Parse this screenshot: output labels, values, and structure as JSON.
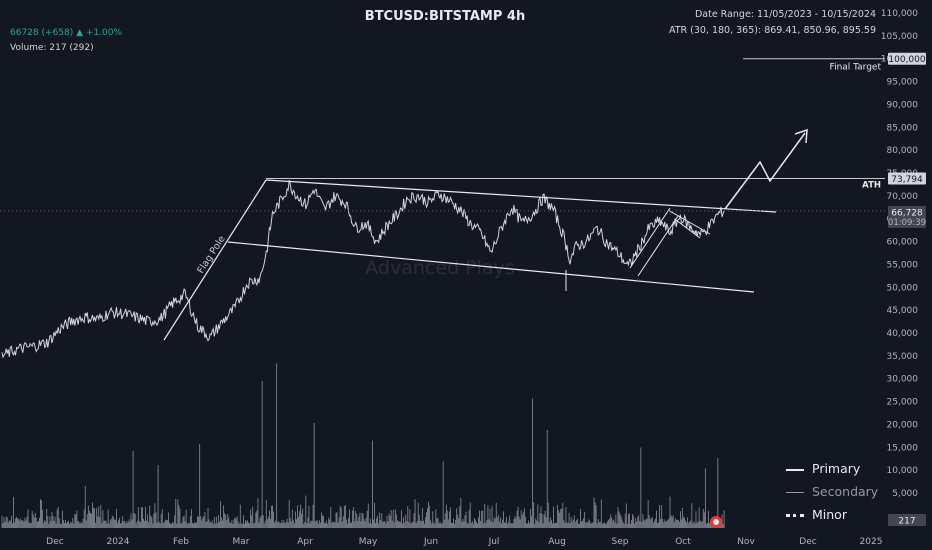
{
  "header": {
    "title": "BTCUSD:BITSTAMP 4h",
    "date_range": "Date Range: 11/05/2023 - 10/15/2024",
    "atr": "ATR (30, 180, 365): 869.41, 850.96, 895.59",
    "price_line": "66728 (+658) ▲ +1.00%",
    "volume_line": "Volume: 217 (292)"
  },
  "colors": {
    "background": "#131722",
    "grid": "#1e222d",
    "candles": "#d1d4dc",
    "volume": "#8a8f9a",
    "text": "#b2b5be",
    "label_bg": "#434651",
    "positive": "#26a69a"
  },
  "watermark": "Advanced Plays",
  "chart_data": {
    "type": "line",
    "title": "BTCUSD:BITSTAMP 4h",
    "x_labels": [
      "Dec",
      "2024",
      "Feb",
      "Mar",
      "Apr",
      "May",
      "Jun",
      "Jul",
      "Aug",
      "Sep",
      "Oct",
      "Nov",
      "Dec",
      "2025"
    ],
    "y_ticks": [
      5000,
      10000,
      15000,
      20000,
      25000,
      30000,
      35000,
      40000,
      45000,
      50000,
      55000,
      60000,
      65000,
      70000,
      75000,
      80000,
      85000,
      90000,
      95000,
      100000,
      105000,
      110000
    ],
    "y_tick_labels": [
      "5,000",
      "10,000",
      "15,000",
      "20,000",
      "25,000",
      "30,000",
      "35,000",
      "40,000",
      "45,000",
      "50,000",
      "55,000",
      "60,000",
      "65,000",
      "70,000",
      "75,000",
      "80,000",
      "85,000",
      "90,000",
      "95,000",
      "100,000",
      "105,000",
      "110,000"
    ],
    "ylim": [
      1000,
      111000
    ],
    "x_range_days": [
      0,
      420
    ],
    "grid": false,
    "series": [
      {
        "name": "BTCUSD",
        "x": [
          0,
          8,
          16,
          22,
          28,
          34,
          40,
          46,
          52,
          58,
          64,
          70,
          76,
          82,
          88,
          94,
          100,
          106,
          112,
          118,
          124,
          127,
          130,
          134,
          138,
          142,
          146,
          150,
          155,
          160,
          165,
          170,
          175,
          180,
          185,
          190,
          195,
          200,
          205,
          210,
          215,
          220,
          225,
          230,
          235,
          240,
          245,
          250,
          255,
          260,
          265,
          270,
          273,
          276,
          281,
          286,
          291,
          296,
          301,
          306,
          311,
          316,
          321,
          326,
          331,
          336,
          341,
          344,
          347
        ],
        "y": [
          35000,
          36500,
          37200,
          38000,
          41000,
          42700,
          43500,
          43000,
          44500,
          44300,
          43500,
          42500,
          43000,
          46500,
          48500,
          41500,
          39000,
          42500,
          45500,
          51000,
          52000,
          57500,
          66000,
          69000,
          72500,
          70000,
          68000,
          71500,
          67000,
          70000,
          68500,
          63000,
          64000,
          60000,
          63500,
          66000,
          69500,
          70000,
          68500,
          70500,
          69000,
          67000,
          64000,
          62000,
          57500,
          63000,
          67500,
          64000,
          66000,
          69500,
          67000,
          61000,
          56000,
          59000,
          60000,
          63000,
          59500,
          57500,
          54500,
          58500,
          63000,
          64500,
          62000,
          65500,
          63000,
          61500,
          64000,
          66000,
          66728
        ]
      }
    ],
    "volume": {
      "name": "Volume",
      "last": 217,
      "spikes": [
        [
          40,
          6000
        ],
        [
          63,
          11000
        ],
        [
          75,
          9000
        ],
        [
          95,
          12000
        ],
        [
          125,
          21000
        ],
        [
          132,
          23500
        ],
        [
          150,
          15000
        ],
        [
          178,
          12500
        ],
        [
          212,
          9500
        ],
        [
          255,
          18500
        ],
        [
          262,
          14000
        ],
        [
          307,
          11500
        ],
        [
          338,
          8500
        ],
        [
          344,
          10000
        ]
      ]
    },
    "annotations": {
      "final_target": "Final Target",
      "final_target_value": 100000,
      "final_target_label": "100,000",
      "ath": "ATH",
      "ath_value": 73794,
      "ath_label": "73,794",
      "last_price_label": "66,728",
      "countdown": "01:09:39",
      "flag_pole": "Flag Pole",
      "volume_label": "217"
    }
  },
  "legend": {
    "primary": "Primary",
    "secondary": "Secondary",
    "minor": "Minor"
  }
}
